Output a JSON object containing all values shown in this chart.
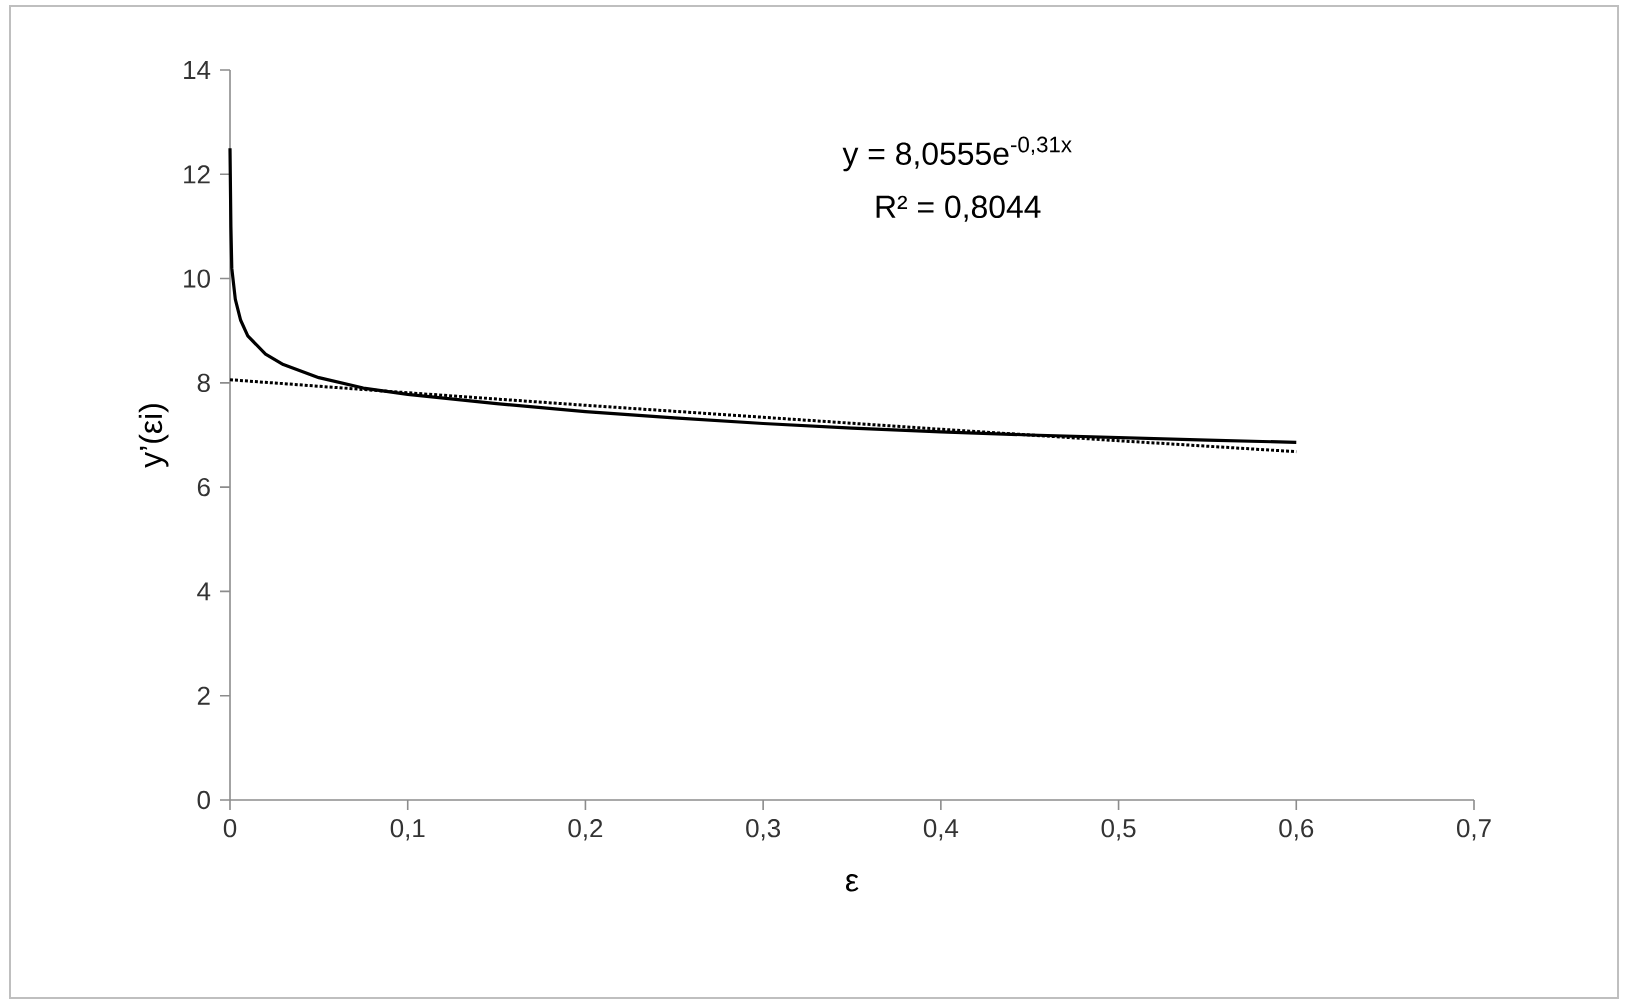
{
  "chart_data": {
    "type": "line",
    "xlabel": "ε",
    "ylabel": "y’(εi)",
    "xlim": [
      0,
      0.7
    ],
    "ylim": [
      0,
      14
    ],
    "xticks": [
      0,
      {
        "value": 0.1,
        "label": "0,1"
      },
      {
        "value": 0.2,
        "label": "0,2"
      },
      {
        "value": 0.3,
        "label": "0,3"
      },
      {
        "value": 0.4,
        "label": "0,4"
      },
      {
        "value": 0.5,
        "label": "0,5"
      },
      {
        "value": 0.6,
        "label": "0,6"
      },
      {
        "value": 0.7,
        "label": "0,7"
      }
    ],
    "yticks": [
      0,
      2,
      4,
      6,
      8,
      10,
      12,
      14
    ],
    "series": [
      {
        "color": "#000000",
        "line_style": "solid",
        "x": [
          0,
          0.0005,
          0.001,
          0.003,
          0.006,
          0.01,
          0.02,
          0.03,
          0.05,
          0.075,
          0.1,
          0.15,
          0.2,
          0.25,
          0.3,
          0.35,
          0.4,
          0.45,
          0.5,
          0.55,
          0.6
        ],
        "values": [
          12.5,
          11,
          10.2,
          9.6,
          9.2,
          8.9,
          8.55,
          8.35,
          8.1,
          7.9,
          7.78,
          7.6,
          7.45,
          7.33,
          7.22,
          7.13,
          7.06,
          7.0,
          6.95,
          6.9,
          6.86
        ]
      },
      {
        "color": "#000000",
        "line_style": "dotted",
        "x": [
          0,
          0.1,
          0.2,
          0.3,
          0.4,
          0.5,
          0.6
        ],
        "values": [
          8.06,
          7.81,
          7.57,
          7.34,
          7.11,
          6.89,
          6.68
        ]
      }
    ],
    "annotations": [
      "y = 8,0555e$^{-0,31x}$",
      "R² = 0,8044"
    ]
  }
}
